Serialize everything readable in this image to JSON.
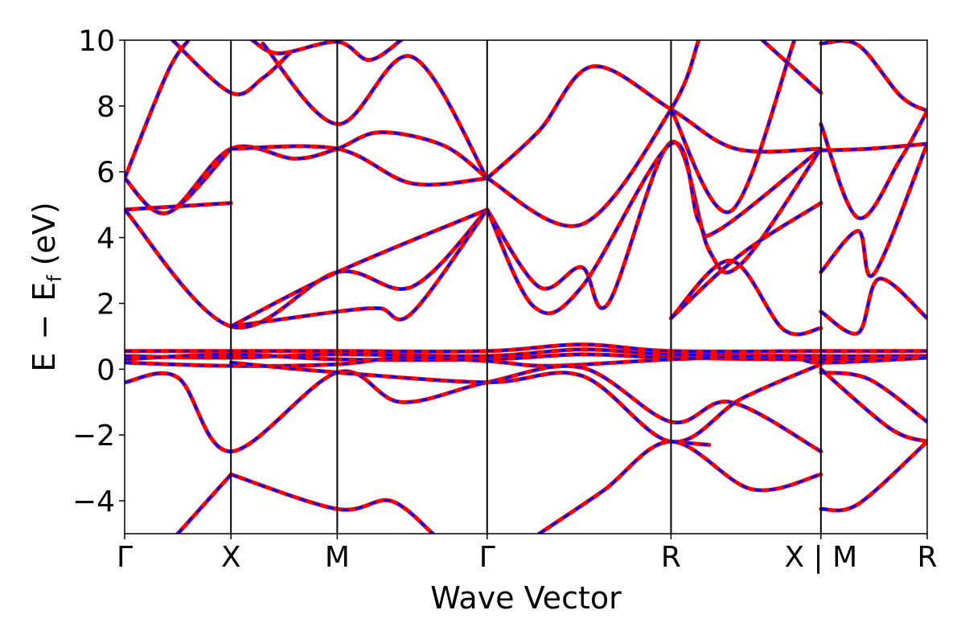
{
  "chart_data": {
    "type": "line",
    "title": "",
    "xlabel": "Wave Vector",
    "ylabel_parts": {
      "E": "E",
      "minus": "−",
      "Ef_main": "E",
      "Ef_sub": "f",
      "unit": "(eV)"
    },
    "ylim": [
      -5,
      10
    ],
    "yticks": [
      -4,
      -2,
      0,
      2,
      4,
      6,
      8,
      10
    ],
    "ytick_labels": [
      "−4",
      "−2",
      "0",
      "2",
      "4",
      "6",
      "8",
      "10"
    ],
    "kpath": [
      {
        "label": "Γ",
        "x": 0.0
      },
      {
        "label": "X",
        "x": 1.0
      },
      {
        "label": "M",
        "x": 2.0
      },
      {
        "label": "Γ",
        "x": 3.41
      },
      {
        "label": "R",
        "x": 5.14
      },
      {
        "label": "X | M",
        "x": 6.55
      },
      {
        "label": "R",
        "x": 7.55
      }
    ],
    "xlim": [
      0,
      7.55
    ],
    "grid": false,
    "colors": {
      "band_solid": "#ff0000",
      "band_dashed": "#0000ff",
      "kpath_line": "#000000"
    },
    "series": [
      {
        "label": "",
        "points": [
          [
            0,
            5.8
          ],
          [
            0.4,
            9.0
          ],
          [
            0.6,
            10.0
          ]
        ]
      },
      {
        "label": "",
        "points": [
          [
            0.45,
            10.0
          ],
          [
            1.0,
            8.4
          ],
          [
            1.3,
            8.85
          ],
          [
            1.55,
            9.6
          ]
        ]
      },
      {
        "label": "",
        "points": [
          [
            1.2,
            10.0
          ],
          [
            1.45,
            9.6
          ],
          [
            2.0,
            9.95
          ],
          [
            2.3,
            9.4
          ],
          [
            2.6,
            10.0
          ]
        ]
      },
      {
        "label": "",
        "points": [
          [
            1.3,
            9.9
          ],
          [
            2.0,
            7.45
          ],
          [
            2.7,
            9.5
          ],
          [
            3.41,
            5.8
          ]
        ]
      },
      {
        "label": "",
        "points": [
          [
            0,
            5.8
          ],
          [
            0.4,
            4.75
          ],
          [
            1.0,
            6.7
          ],
          [
            1.6,
            6.4
          ],
          [
            2.0,
            6.7
          ],
          [
            2.4,
            7.2
          ],
          [
            3.0,
            6.8
          ],
          [
            3.41,
            5.8
          ]
        ]
      },
      {
        "label": "",
        "points": [
          [
            0,
            5.8
          ],
          [
            0.4,
            4.75
          ],
          [
            1.0,
            6.7
          ]
        ]
      },
      {
        "label": "",
        "points": [
          [
            1.0,
            6.7
          ],
          [
            2.0,
            6.7
          ],
          [
            2.7,
            5.65
          ],
          [
            3.41,
            5.8
          ]
        ]
      },
      {
        "label": "",
        "points": [
          [
            0,
            4.85
          ],
          [
            1.0,
            5.05
          ]
        ]
      },
      {
        "label": "",
        "points": [
          [
            0,
            4.85
          ],
          [
            1.0,
            1.3
          ],
          [
            2.0,
            2.95
          ],
          [
            2.7,
            2.5
          ],
          [
            3.41,
            4.85
          ]
        ]
      },
      {
        "label": "",
        "points": [
          [
            1.0,
            1.3
          ],
          [
            2.0,
            2.95
          ],
          [
            3.41,
            4.85
          ]
        ]
      },
      {
        "label": "",
        "points": [
          [
            1.0,
            1.3
          ],
          [
            2.0,
            1.75
          ],
          [
            2.4,
            1.85
          ],
          [
            2.7,
            1.7
          ],
          [
            3.41,
            4.85
          ]
        ]
      },
      {
        "label": "",
        "points": [
          [
            3.41,
            4.85
          ],
          [
            3.9,
            2.5
          ],
          [
            4.3,
            3.1
          ],
          [
            4.55,
            2.0
          ],
          [
            5.14,
            6.9
          ],
          [
            5.5,
            3.6
          ],
          [
            5.8,
            3.2
          ],
          [
            6.55,
            6.7
          ]
        ]
      },
      {
        "label": "",
        "points": [
          [
            3.41,
            4.85
          ],
          [
            3.85,
            1.9
          ],
          [
            4.3,
            2.5
          ],
          [
            5.14,
            6.85
          ],
          [
            5.4,
            4.5
          ],
          [
            5.6,
            4.25
          ],
          [
            6.55,
            6.7
          ]
        ]
      },
      {
        "label": "",
        "points": [
          [
            3.41,
            5.8
          ],
          [
            3.9,
            7.25
          ],
          [
            4.4,
            9.2
          ],
          [
            5.14,
            7.9
          ],
          [
            5.75,
            6.7
          ],
          [
            6.55,
            6.7
          ]
        ]
      },
      {
        "label": "",
        "points": [
          [
            3.41,
            5.8
          ],
          [
            4.3,
            4.4
          ],
          [
            5.14,
            7.9
          ],
          [
            5.4,
            10.0
          ]
        ]
      },
      {
        "label": "",
        "points": [
          [
            5.14,
            7.9
          ],
          [
            5.7,
            4.8
          ],
          [
            6.3,
            10.0
          ]
        ]
      },
      {
        "label": "",
        "points": [
          [
            5.14,
            1.55
          ],
          [
            5.7,
            3.3
          ],
          [
            6.2,
            1.2
          ],
          [
            6.55,
            1.25
          ]
        ]
      },
      {
        "label": "",
        "points": [
          [
            5.14,
            1.55
          ],
          [
            5.8,
            3.5
          ],
          [
            6.55,
            5.05
          ]
        ]
      },
      {
        "label": "",
        "points": [
          [
            6.0,
            10.0
          ],
          [
            6.55,
            8.4
          ]
        ]
      },
      {
        "label": "",
        "points": [
          [
            6.55,
            9.9
          ],
          [
            6.9,
            9.85
          ],
          [
            7.3,
            8.3
          ],
          [
            7.55,
            7.85
          ]
        ]
      },
      {
        "label": "",
        "points": [
          [
            6.55,
            7.45
          ],
          [
            6.9,
            4.6
          ],
          [
            7.3,
            6.4
          ],
          [
            7.55,
            7.85
          ]
        ]
      },
      {
        "label": "",
        "points": [
          [
            6.55,
            6.65
          ],
          [
            7.0,
            6.7
          ],
          [
            7.55,
            6.85
          ]
        ]
      },
      {
        "label": "",
        "points": [
          [
            6.55,
            2.95
          ],
          [
            6.9,
            4.2
          ],
          [
            7.05,
            2.9
          ],
          [
            7.55,
            6.85
          ]
        ]
      },
      {
        "label": "",
        "points": [
          [
            6.55,
            1.75
          ],
          [
            6.9,
            1.1
          ],
          [
            7.1,
            2.75
          ],
          [
            7.55,
            1.55
          ]
        ]
      },
      {
        "label": "",
        "points": [
          [
            0,
            0.55
          ],
          [
            1.0,
            0.55
          ],
          [
            2.0,
            0.55
          ],
          [
            3.41,
            0.55
          ],
          [
            4.3,
            0.75
          ],
          [
            5.14,
            0.55
          ],
          [
            6.55,
            0.55
          ],
          [
            7.55,
            0.55
          ]
        ]
      },
      {
        "label": "",
        "points": [
          [
            0,
            0.4
          ],
          [
            1.0,
            0.35
          ],
          [
            2.0,
            0.45
          ],
          [
            3.41,
            0.4
          ],
          [
            4.3,
            0.6
          ],
          [
            5.14,
            0.45
          ],
          [
            6.55,
            0.4
          ],
          [
            7.55,
            0.4
          ]
        ]
      },
      {
        "label": "",
        "points": [
          [
            0,
            0.3
          ],
          [
            1.0,
            0.45
          ],
          [
            2.0,
            0.3
          ],
          [
            3.41,
            0.3
          ],
          [
            4.3,
            0.45
          ],
          [
            5.14,
            0.35
          ],
          [
            6.55,
            0.3
          ],
          [
            7.55,
            0.35
          ]
        ]
      },
      {
        "label": "",
        "points": [
          [
            0,
            0.2
          ],
          [
            1.0,
            0.1
          ],
          [
            2.0,
            0.15
          ],
          [
            2.6,
            0.35
          ],
          [
            3.41,
            0.25
          ],
          [
            4.0,
            0.1
          ],
          [
            5.14,
            0.3
          ],
          [
            6.2,
            0.4
          ],
          [
            6.55,
            0.2
          ],
          [
            7.55,
            0.35
          ]
        ]
      },
      {
        "label": "",
        "points": [
          [
            0,
            -0.4
          ],
          [
            0.5,
            -0.25
          ],
          [
            1.0,
            -2.5
          ],
          [
            2.0,
            -0.1
          ],
          [
            2.6,
            -1.0
          ],
          [
            3.41,
            -0.4
          ],
          [
            4.3,
            0.05
          ],
          [
            5.14,
            -1.6
          ],
          [
            5.7,
            -1.0
          ],
          [
            6.55,
            -2.5
          ]
        ]
      },
      {
        "label": "",
        "points": [
          [
            1.0,
            0.2
          ],
          [
            2.0,
            -0.1
          ],
          [
            3.41,
            -0.4
          ],
          [
            4.3,
            -0.2
          ],
          [
            5.14,
            -2.2
          ],
          [
            5.8,
            -0.9
          ],
          [
            6.55,
            0.15
          ]
        ]
      },
      {
        "label": "",
        "points": [
          [
            6.55,
            -0.1
          ],
          [
            7.0,
            -0.3
          ],
          [
            7.55,
            -1.6
          ]
        ]
      },
      {
        "label": "",
        "points": [
          [
            6.55,
            0.0
          ],
          [
            7.2,
            -1.8
          ],
          [
            7.55,
            -2.2
          ]
        ]
      },
      {
        "label": "",
        "points": [
          [
            1.0,
            -3.2
          ],
          [
            2.0,
            -4.25
          ],
          [
            2.5,
            -4.0
          ],
          [
            2.9,
            -5.0
          ]
        ]
      },
      {
        "label": "",
        "points": [
          [
            0.5,
            -5.0
          ],
          [
            1.0,
            -3.2
          ]
        ]
      },
      {
        "label": "",
        "points": [
          [
            3.9,
            -5.0
          ],
          [
            4.5,
            -3.7
          ],
          [
            5.14,
            -2.2
          ],
          [
            5.9,
            -3.65
          ],
          [
            6.55,
            -3.2
          ]
        ]
      },
      {
        "label": "",
        "points": [
          [
            5.14,
            -2.2
          ],
          [
            5.5,
            -2.3
          ]
        ]
      },
      {
        "label": "",
        "points": [
          [
            6.55,
            -4.25
          ],
          [
            6.9,
            -4.1
          ],
          [
            7.55,
            -2.2
          ]
        ]
      }
    ]
  }
}
